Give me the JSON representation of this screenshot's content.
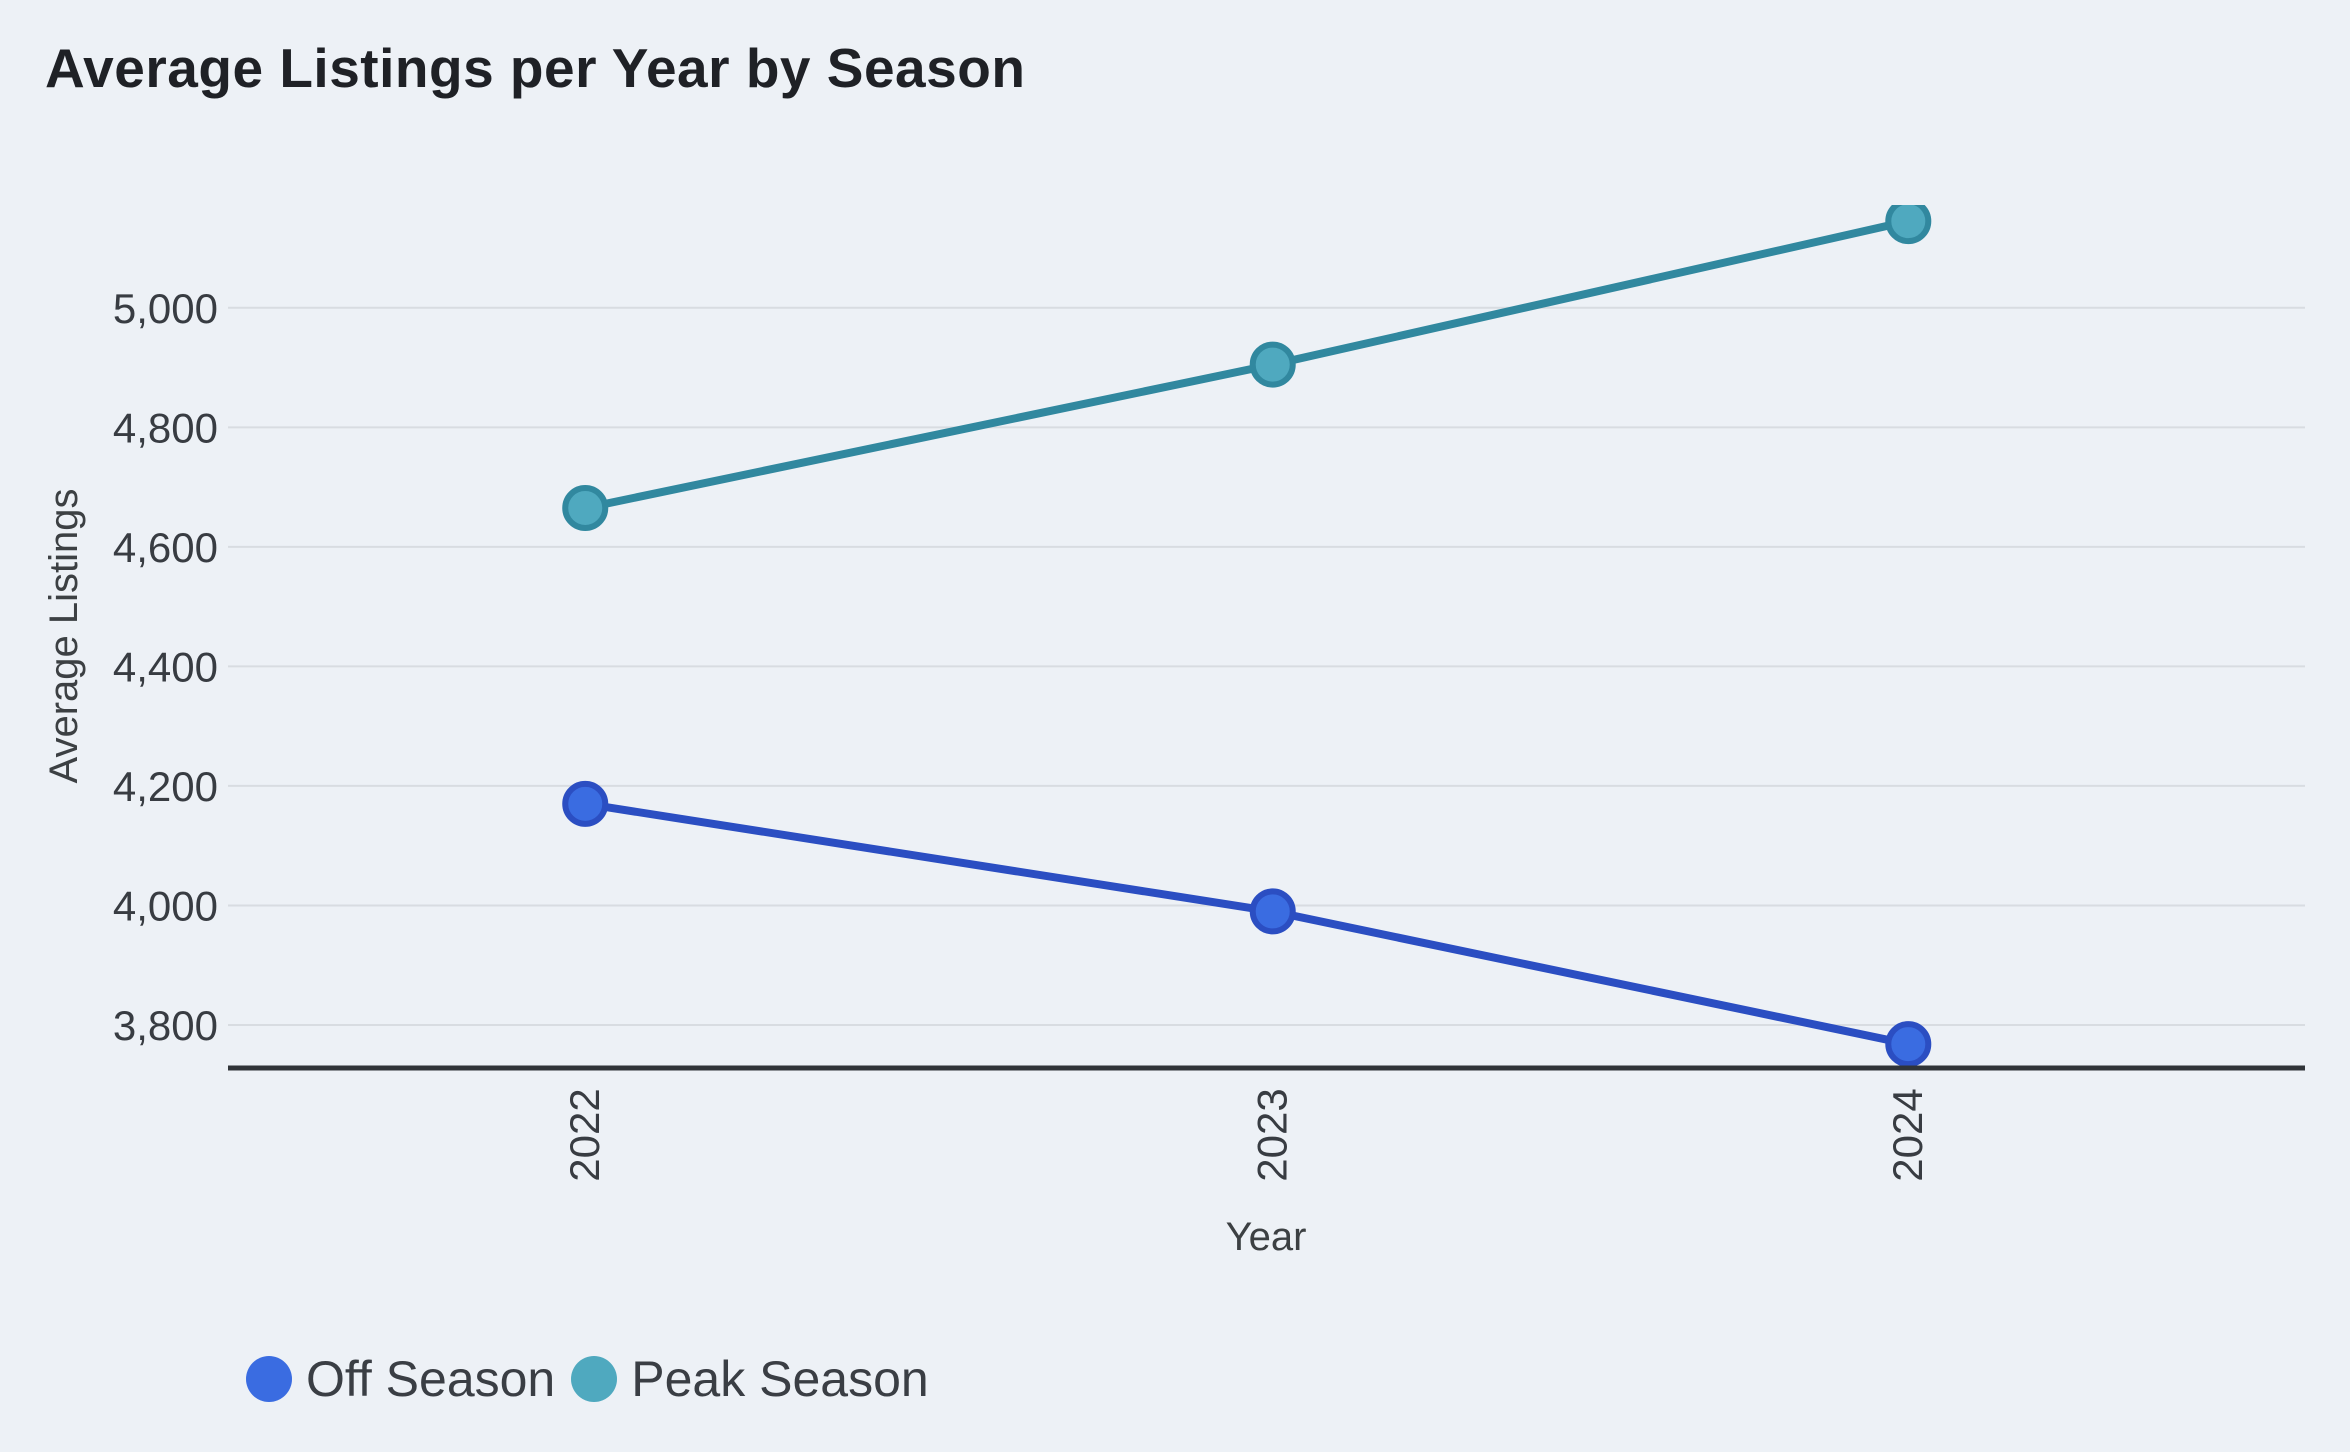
{
  "app": {
    "background": "#edf1f6"
  },
  "chart_data": {
    "type": "line",
    "title": "Average Listings per Year by Season",
    "xlabel": "Year",
    "ylabel": "Average Listings",
    "categories": [
      "2022",
      "2023",
      "2024"
    ],
    "series": [
      {
        "name": "Off Season",
        "values": [
          4170,
          3990,
          3768
        ],
        "line_color": "#2b4ec2",
        "marker_fill": "#3a6ce1"
      },
      {
        "name": "Peak Season",
        "values": [
          4665,
          4905,
          5145
        ],
        "line_color": "#31889f",
        "marker_fill": "#4fa9bf"
      }
    ],
    "yticks": [
      {
        "value": 3800,
        "label": "3,800"
      },
      {
        "value": 4000,
        "label": "4,000"
      },
      {
        "value": 4200,
        "label": "4,200"
      },
      {
        "value": 4400,
        "label": "4,400"
      },
      {
        "value": 4600,
        "label": "4,600"
      },
      {
        "value": 4800,
        "label": "4,800"
      },
      {
        "value": 5000,
        "label": "5,000"
      }
    ],
    "ylim": [
      3728,
      5172
    ],
    "grid": true,
    "legend_position": "bottom-left",
    "colors": {
      "grid_line": "#d8dce1",
      "axis_line": "#303438",
      "title_text": "#1f2126",
      "label_text": "#3c4043"
    }
  }
}
